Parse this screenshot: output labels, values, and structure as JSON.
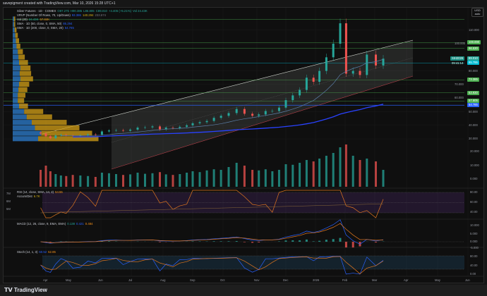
{
  "header": "savepigment created with TradingView.com, Mar 10, 2026 15:28 UTC+1",
  "legend": {
    "symbol": "Silver Futures · 1D · COMEX",
    "o": "O87.275",
    "h": "H90.385",
    "l": "L86.805",
    "c": "C89.010",
    "chg": "+4.405 (+5.21%)",
    "vol": "Vol 24.43K",
    "vrvp": "VRVP (Number Of Rows, 70, Up/Down)",
    "vrvp_up": "93.386",
    "vrvp_down": "140.294",
    "vrvp_total": "233.674",
    "volind": "Vol (20)",
    "volind_v1": "24.43K",
    "volind_v2": "57.84K",
    "sma50": "SMA · 1D (50, close, 0, SMA, 50)",
    "sma50_v": "85.294",
    "sma200": "SMA · 1D (200, close, 0, SMA, 20)",
    "sma200_v": "54.785",
    "rsi": "RSI (14, close, SMA, 14, 2)",
    "rsi_v": "54.55",
    "ad": "Accum/Dist",
    "ad_v": "6.7K",
    "macd": "MACD (12, 26, close, 9, EMA, EMA)",
    "macd_v1": "0.138",
    "macd_v2": "0.421",
    "macd_v3": "0.484",
    "stoch": "Stoch (14, 1, 3)",
    "stoch_v1": "60.52",
    "stoch_v2": "52.85"
  },
  "currency": "USD",
  "scale_mode": "auto",
  "left_scale": [
    "7M",
    "6M",
    "5M"
  ],
  "price_axis": [
    {
      "p": 110,
      "t": "110.000"
    },
    {
      "p": 100,
      "t": "100.000"
    },
    {
      "p": 80,
      "t": "80.000"
    },
    {
      "p": 70,
      "t": "70.000"
    },
    {
      "p": 60,
      "t": "60.000"
    },
    {
      "p": 50,
      "t": "50.000"
    },
    {
      "p": 40,
      "t": "40.000"
    },
    {
      "p": 30,
      "t": "30.000"
    }
  ],
  "price_tags": [
    {
      "p": 100.89,
      "t": "100.890",
      "color": "#4caf50"
    },
    {
      "p": 96.53,
      "t": "96.530",
      "color": "#4caf50"
    },
    {
      "p": 89.01,
      "t": "89.010",
      "color": "#26a69a"
    },
    {
      "p": 85.795,
      "t": "85.795",
      "color": "#00bcd4"
    },
    {
      "p": 73.385,
      "t": "73.385",
      "color": "#4caf50"
    },
    {
      "p": 63.93,
      "t": "63.930",
      "color": "#4caf50"
    },
    {
      "p": 57.805,
      "t": "57.805",
      "color": "#4caf50"
    },
    {
      "p": 54.785,
      "t": "54.785",
      "color": "#2962ff"
    }
  ],
  "contract_tag": "SIH2026",
  "countdown": "09:41:14",
  "hlines": [
    {
      "p": 118,
      "color": "#4caf50"
    },
    {
      "p": 100.89,
      "color": "#4caf50"
    },
    {
      "p": 96.53,
      "color": "#4caf50"
    },
    {
      "p": 85.795,
      "color": "#00bcd4"
    },
    {
      "p": 73.385,
      "color": "#4caf50"
    },
    {
      "p": 63.93,
      "color": "#4caf50"
    },
    {
      "p": 57.805,
      "color": "#4caf50"
    },
    {
      "p": 54.785,
      "color": "#2962ff"
    }
  ],
  "volume_axis": [
    "20.000",
    "10.000",
    "0.000"
  ],
  "rsi_axis": [
    "80.00",
    "60.00",
    "40.00"
  ],
  "macd_axis": [
    "10.000",
    "5.000",
    "0.000",
    "-5.000"
  ],
  "stoch_axis": [
    "80.00",
    "40.00",
    "0.00"
  ],
  "time_axis": [
    "Apr",
    "May",
    "Jun",
    "Jul",
    "Aug",
    "Sep",
    "Oct",
    "Nov",
    "Dec",
    "2026",
    "Feb",
    "Mar",
    "Apr",
    "May",
    "Jun"
  ],
  "brand": "TradingView",
  "colors": {
    "up": "#26a69a",
    "down": "#ef5350",
    "sma50": "#5b7ea8",
    "sma200": "#2942ff",
    "rsi": "#e0761f",
    "channel": "#cfd4cc",
    "channel_low": "#b7404a",
    "vp_up": "#2d7fd0",
    "vp_down": "#d4a017"
  },
  "chart_data": {
    "type": "candlestick",
    "symbol": "Silver Futures (COMEX)",
    "ylim": [
      25,
      125
    ],
    "x": [
      "2025-03-24",
      "2025-03-31",
      "2025-04-07",
      "2025-04-14",
      "2025-04-21",
      "2025-04-28",
      "2025-05-05",
      "2025-05-12",
      "2025-05-19",
      "2025-05-26",
      "2025-06-02",
      "2025-06-09",
      "2025-06-16",
      "2025-06-23",
      "2025-06-30",
      "2025-07-07",
      "2025-07-14",
      "2025-07-21",
      "2025-07-28",
      "2025-08-04",
      "2025-08-11",
      "2025-08-18",
      "2025-08-25",
      "2025-09-01",
      "2025-09-08",
      "2025-09-15",
      "2025-09-22",
      "2025-09-29",
      "2025-10-06",
      "2025-10-13",
      "2025-10-20",
      "2025-10-27",
      "2025-11-03",
      "2025-11-10",
      "2025-11-17",
      "2025-11-24",
      "2025-12-01",
      "2025-12-08",
      "2025-12-15",
      "2025-12-22",
      "2025-12-29",
      "2026-01-05",
      "2026-01-12",
      "2026-01-19",
      "2026-01-26",
      "2026-02-02",
      "2026-02-09",
      "2026-02-16",
      "2026-02-23",
      "2026-03-02",
      "2026-03-09"
    ],
    "close": [
      34,
      32,
      30.5,
      32.5,
      33,
      32.6,
      32.4,
      32.5,
      33.3,
      33.1,
      35.5,
      36.2,
      36.4,
      36,
      36.8,
      38.3,
      38.5,
      39.2,
      37,
      38.3,
      38,
      38.9,
      40,
      41.5,
      42.3,
      43.2,
      45.5,
      47,
      49,
      52,
      48.5,
      47,
      48,
      50.5,
      50.5,
      53,
      58.5,
      62,
      66,
      75,
      72,
      80,
      90,
      100,
      115,
      78,
      80,
      77,
      92,
      84,
      89
    ],
    "volume_k": [
      60,
      75,
      55,
      45,
      40,
      38,
      42,
      40,
      38,
      35,
      50,
      48,
      45,
      42,
      44,
      50,
      46,
      48,
      52,
      44,
      42,
      45,
      50,
      55,
      52,
      58,
      62,
      60,
      70,
      85,
      75,
      60,
      58,
      62,
      55,
      60,
      80,
      78,
      85,
      95,
      90,
      100,
      110,
      120,
      140,
      150,
      110,
      95,
      100,
      90,
      60
    ],
    "volume_profile": {
      "prices": [
        30,
        34,
        38,
        42,
        46,
        50,
        54,
        58,
        62,
        66,
        70,
        74,
        78,
        82,
        86,
        90,
        94,
        98,
        102,
        106,
        110,
        114,
        118
      ],
      "up": [
        40,
        45,
        35,
        30,
        22,
        18,
        10,
        8,
        8,
        9,
        10,
        12,
        11,
        12,
        10,
        9,
        8,
        6,
        5,
        4,
        3,
        2,
        2
      ],
      "down": [
        95,
        80,
        70,
        55,
        40,
        30,
        14,
        10,
        12,
        14,
        16,
        20,
        18,
        16,
        14,
        10,
        8,
        6,
        5,
        4,
        3,
        2,
        2
      ]
    }
  }
}
